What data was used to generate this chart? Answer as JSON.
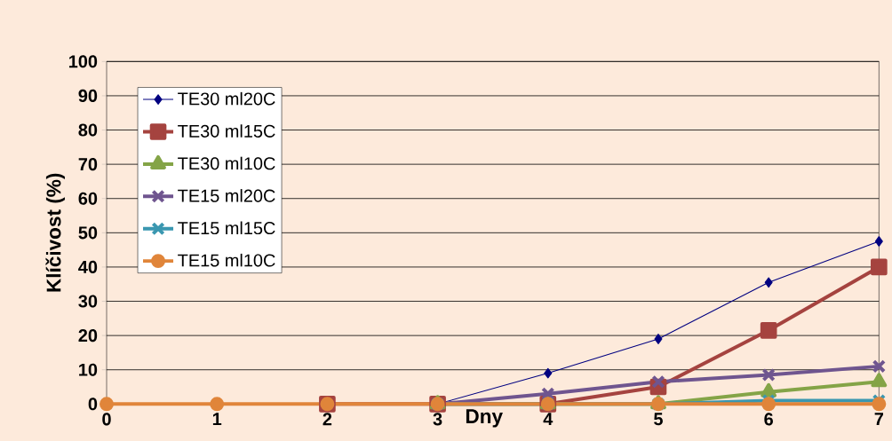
{
  "chart_data": {
    "type": "line",
    "xlabel": "Dny",
    "ylabel": "Klíčivost (%)",
    "x": [
      0,
      1,
      2,
      3,
      4,
      5,
      6,
      7
    ],
    "xlim": [
      0,
      7
    ],
    "xticks": [
      0,
      1,
      2,
      3,
      4,
      5,
      6,
      7
    ],
    "ylim": [
      0,
      100
    ],
    "yticks": [
      0,
      10,
      20,
      30,
      40,
      50,
      60,
      70,
      80,
      90,
      100
    ],
    "grid": "y",
    "legend": "top left",
    "line_style": "solid",
    "series": [
      {
        "name": "TE30 ml20C",
        "color": "#000080",
        "marker": "diamond",
        "values": [
          null,
          null,
          null,
          0,
          9,
          19,
          35.5,
          47.5
        ]
      },
      {
        "name": "TE30 ml15C",
        "color": "#a5433f",
        "marker": "square",
        "values": [
          null,
          null,
          0,
          0,
          0,
          5,
          21.5,
          40
        ]
      },
      {
        "name": "TE30 ml10C",
        "color": "#84a447",
        "marker": "triangle",
        "values": [
          null,
          null,
          null,
          0,
          0,
          0,
          3.5,
          6.5
        ]
      },
      {
        "name": "TE15 ml20C",
        "color": "#6f558f",
        "marker": "cross",
        "values": [
          null,
          null,
          null,
          0,
          3,
          6.5,
          8.5,
          11
        ]
      },
      {
        "name": "TE15 ml15C",
        "color": "#3a97b0",
        "marker": "cross",
        "values": [
          null,
          null,
          null,
          0,
          0,
          0,
          1,
          1
        ]
      },
      {
        "name": "TE15 ml10C",
        "color": "#e0853a",
        "marker": "circle",
        "values": [
          0,
          0,
          0,
          0,
          0,
          0,
          0,
          0
        ]
      }
    ]
  }
}
